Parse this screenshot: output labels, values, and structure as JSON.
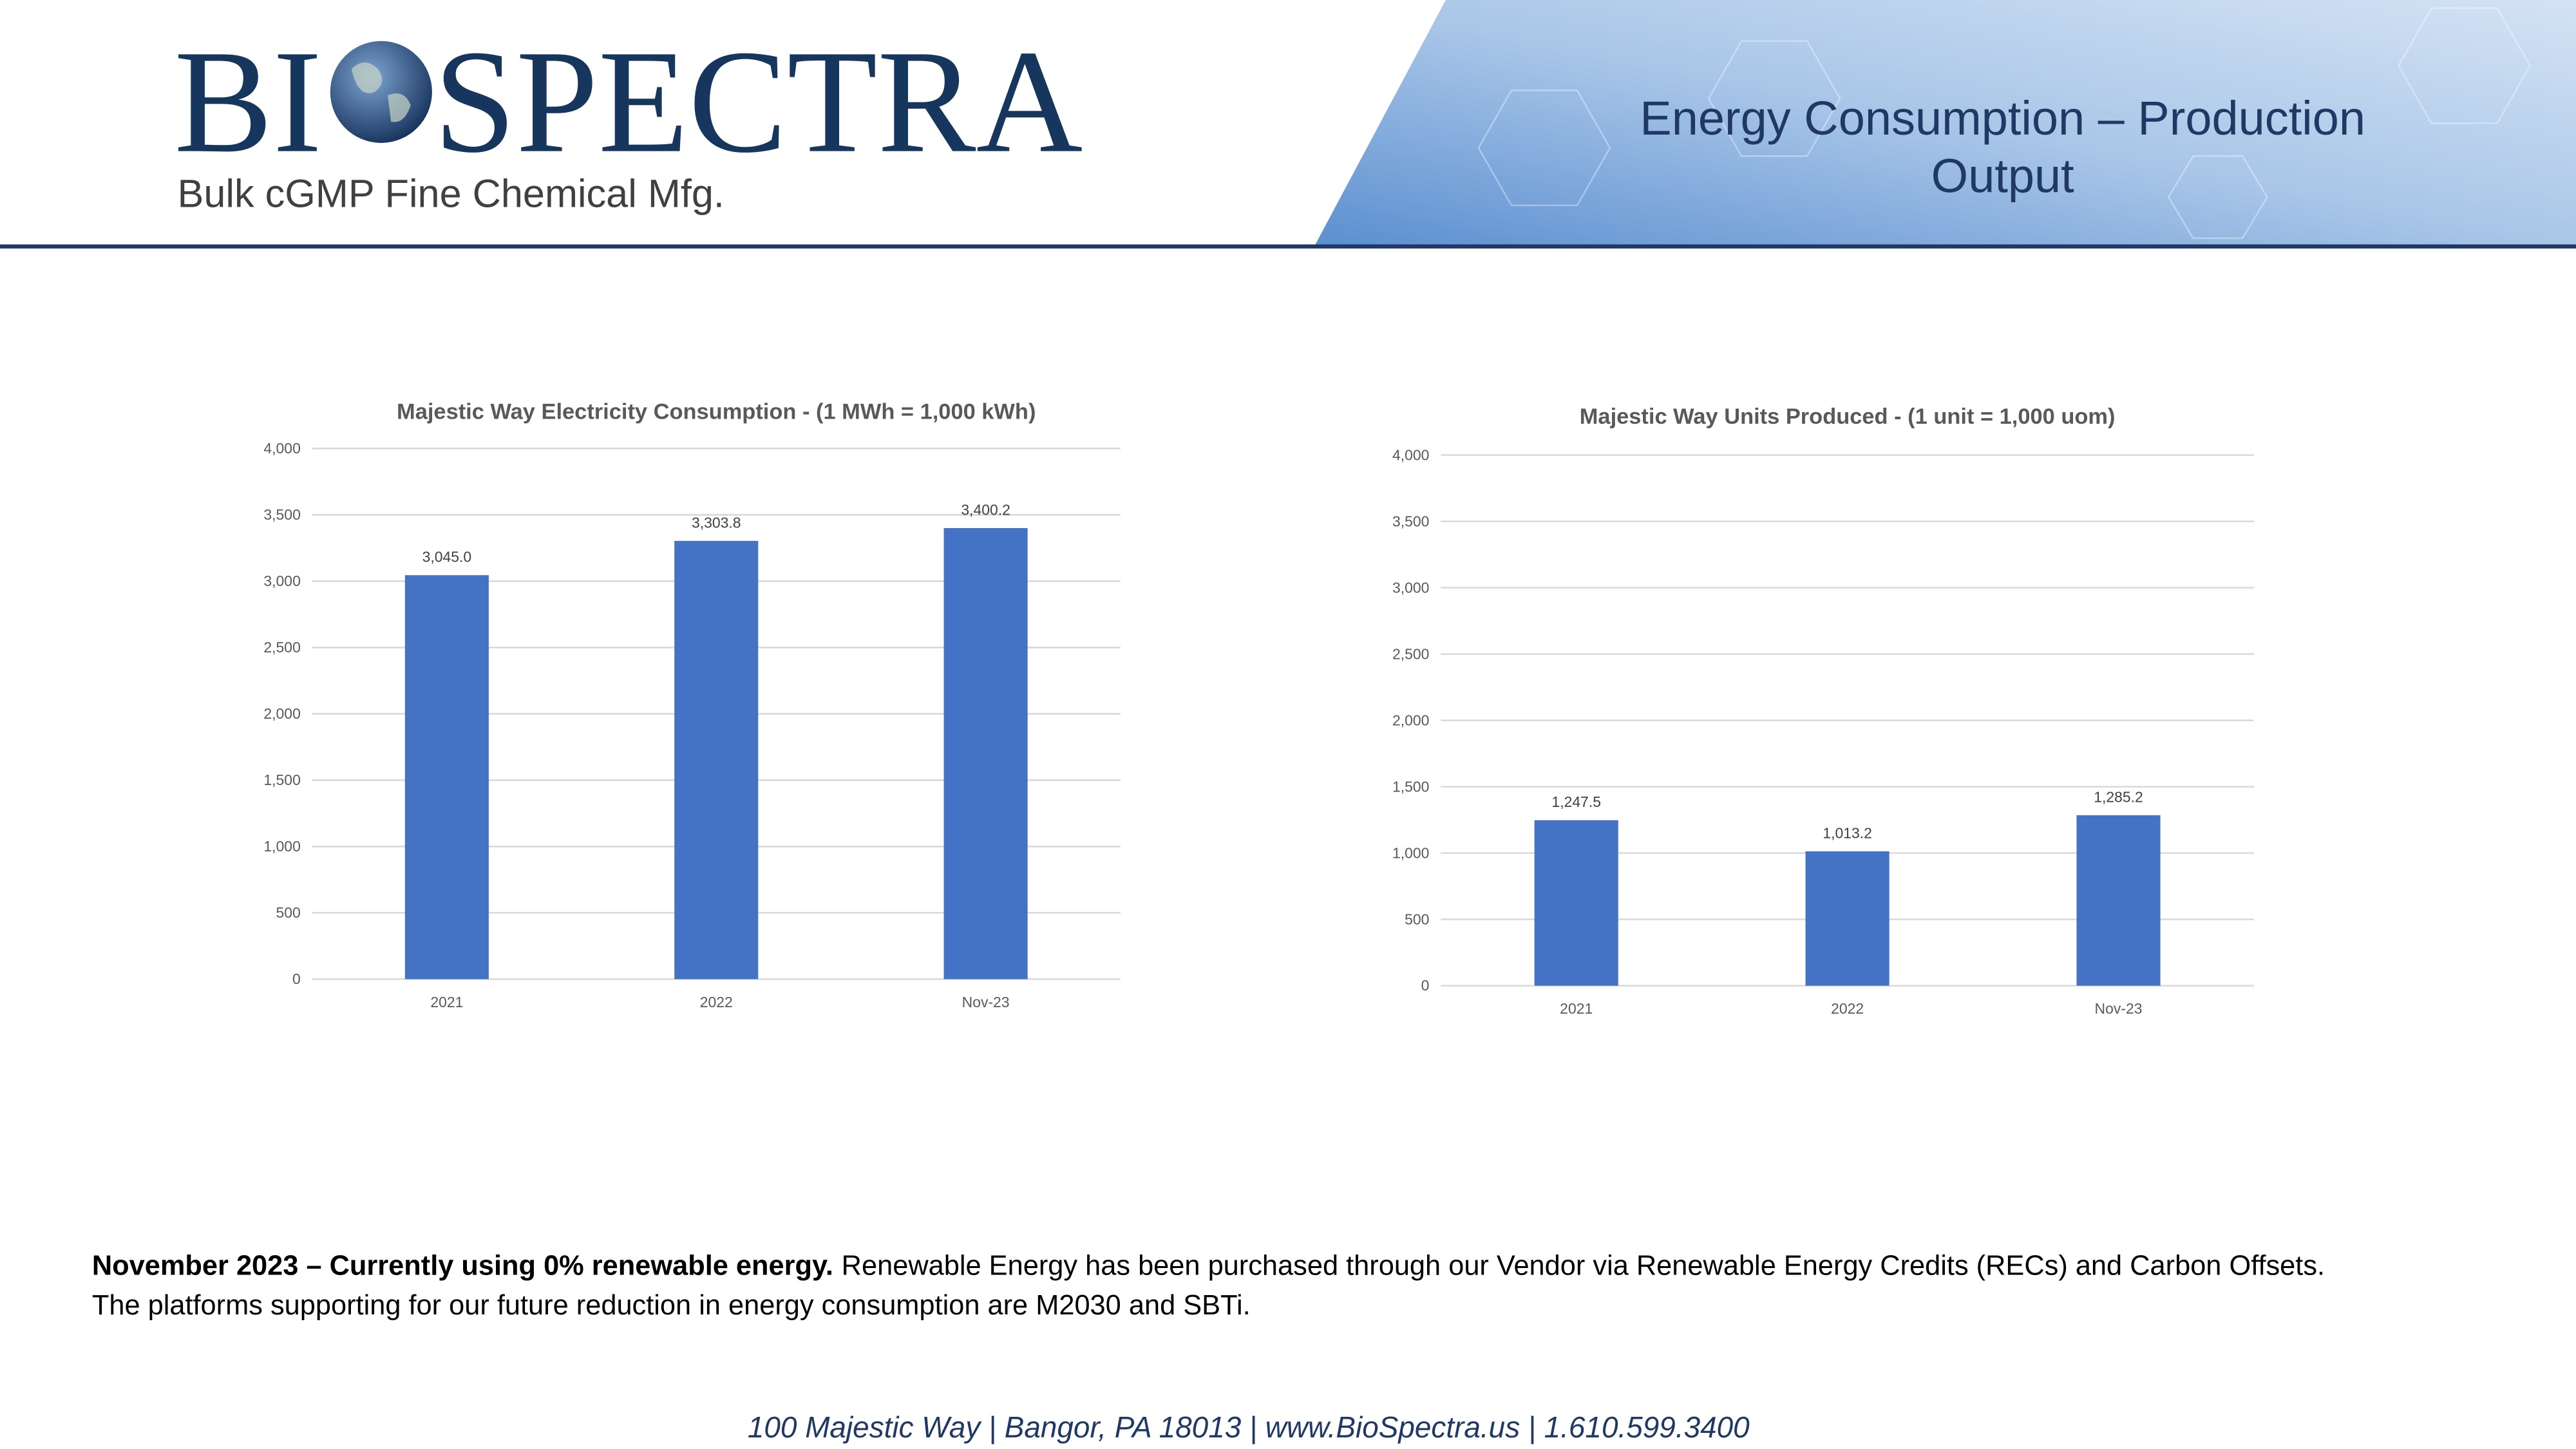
{
  "header": {
    "logo_left": "BI",
    "logo_right": "SPECTRA",
    "tagline": "Bulk cGMP Fine Chemical Mfg.",
    "title": [
      "Energy Consumption – Production",
      "Output"
    ]
  },
  "chart_data": [
    {
      "type": "bar",
      "title": "Majestic Way Electricity Consumption - (1 MWh = 1,000 kWh)",
      "categories": [
        "2021",
        "2022",
        "Nov-23"
      ],
      "values": [
        3045.0,
        3303.8,
        3400.2
      ],
      "value_labels": [
        "3,045.0",
        "3,303.8",
        "3,400.2"
      ],
      "color": "#4472c4",
      "ylim": [
        0,
        4000
      ],
      "yticks": [
        0,
        500,
        {
          "value": 1000,
          "label": "1,000"
        },
        {
          "value": 1500,
          "label": "1,500"
        },
        {
          "value": 2000,
          "label": "2,000"
        },
        {
          "value": 2500,
          "label": "2,500"
        },
        {
          "value": 3000,
          "label": "3,000"
        },
        {
          "value": 3500,
          "label": "3,500"
        },
        {
          "value": 4000,
          "label": "4,000"
        }
      ],
      "grid": true
    },
    {
      "type": "bar",
      "title": "Majestic Way Units Produced - (1 unit = 1,000 uom)",
      "categories": [
        "2021",
        "2022",
        "Nov-23"
      ],
      "values": [
        1247.5,
        1013.2,
        1285.2
      ],
      "value_labels": [
        "1,247.5",
        "1,013.2",
        "1,285.2"
      ],
      "color": "#4472c4",
      "ylim": [
        0,
        4000
      ],
      "yticks": [
        0,
        500,
        {
          "value": 1000,
          "label": "1,000"
        },
        {
          "value": 1500,
          "label": "1,500"
        },
        {
          "value": 2000,
          "label": "2,000"
        },
        {
          "value": 2500,
          "label": "2,500"
        },
        {
          "value": 3000,
          "label": "3,000"
        },
        {
          "value": 3500,
          "label": "3,500"
        },
        {
          "value": 4000,
          "label": "4,000"
        }
      ],
      "grid": true
    }
  ],
  "body": {
    "lead": "November 2023 – Currently using 0% renewable energy.",
    "line1": "Renewable Energy has been purchased through our Vendor via Renewable Energy Credits (RECs) and Carbon Offsets.",
    "line2": "The platforms supporting for our future reduction in energy consumption are M2030 and SBTi."
  },
  "footer": "100 Majestic Way  |  Bangor, PA 18013  |  www.BioSpectra.us  |  1.610.599.3400"
}
